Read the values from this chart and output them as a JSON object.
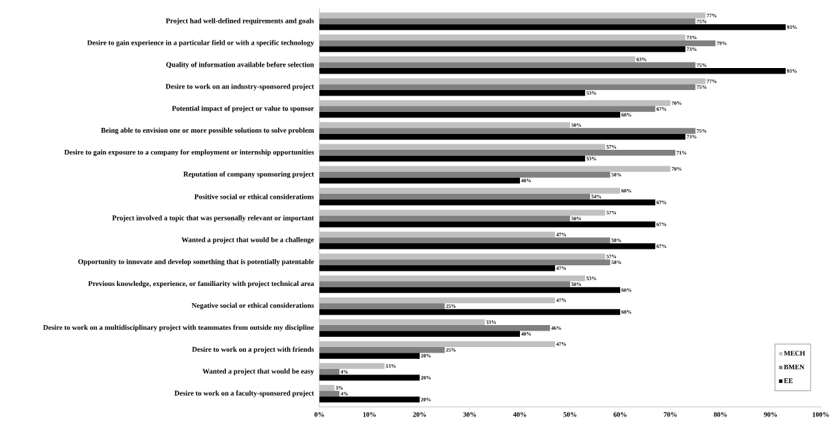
{
  "chart_data": {
    "type": "bar",
    "orientation": "horizontal",
    "categories": [
      "Project had well-defined requirements and goals",
      "Desire to gain experience in a particular field or with a specific technology",
      "Quality of information available before selection",
      "Desire to work on an industry-sponsored project",
      "Potential impact of project or value to sponsor",
      "Being able to envision one or more possible solutions to solve problem",
      "Desire to gain exposure to a company for employment or internship opportunities",
      "Reputation of company sponsoring project",
      "Positive social or ethical considerations",
      "Project involved a topic that was personally relevant or important",
      "Wanted a project that would be a challenge",
      "Opportunity to innovate and develop something that is potentially patentable",
      "Previous knowledge, experience, or familiarity with project technical area",
      "Negative social or ethical considerations",
      "Desire to work on a multidisciplinary project with teammates from outside my discipline",
      "Desire to work on a project with friends",
      "Wanted a project that would be easy",
      "Desire to work on a faculty-sponsored project"
    ],
    "series": [
      {
        "name": "MECH",
        "color": "#c0c0c0",
        "values": [
          77,
          73,
          63,
          77,
          70,
          50,
          57,
          70,
          60,
          57,
          47,
          57,
          53,
          47,
          33,
          47,
          13,
          3
        ],
        "value_labels": [
          "77%",
          "73%",
          "63%",
          "77%",
          "70%",
          "50%",
          "57%",
          "70%",
          "60%",
          "57%",
          "47%",
          "57%",
          "53%",
          "47%",
          "33%",
          "47%",
          "13%",
          "3%"
        ]
      },
      {
        "name": "BMEN",
        "color": "#808080",
        "values": [
          75,
          79,
          75,
          75,
          67,
          75,
          71,
          58,
          54,
          50,
          58,
          58,
          50,
          25,
          46,
          25,
          4,
          4
        ],
        "value_labels": [
          "75%",
          "79%",
          "75%",
          "75%",
          "67%",
          "75%",
          "71%",
          "58%",
          "54%",
          "50%",
          "58%",
          "58%",
          "50%",
          "25%",
          "46%",
          "25%",
          "4%",
          "4%"
        ]
      },
      {
        "name": "EE",
        "color": "#000000",
        "values": [
          93,
          73,
          93,
          53,
          60,
          73,
          53,
          40,
          67,
          67,
          67,
          47,
          60,
          60,
          40,
          20,
          20,
          20
        ],
        "value_labels": [
          "93%",
          "73%",
          "93%",
          "53%",
          "60%",
          "73%",
          "53%",
          "40%",
          "67%",
          "67%",
          "67%",
          "47%",
          "60%",
          "60%",
          "40%",
          "20%",
          "20%",
          "20%"
        ]
      }
    ],
    "xlim": [
      0,
      100
    ],
    "xticks": [
      {
        "value": 0,
        "label": "0%"
      },
      {
        "value": 10,
        "label": "10%"
      },
      {
        "value": 20,
        "label": "20%"
      },
      {
        "value": 30,
        "label": "30%"
      },
      {
        "value": 40,
        "label": "40%"
      },
      {
        "value": 50,
        "label": "50%"
      },
      {
        "value": 60,
        "label": "60%"
      },
      {
        "value": 70,
        "label": "70%"
      },
      {
        "value": 80,
        "label": "80%"
      },
      {
        "value": 90,
        "label": "90%"
      },
      {
        "value": 100,
        "label": "100%"
      }
    ],
    "legend": "bottom right"
  }
}
